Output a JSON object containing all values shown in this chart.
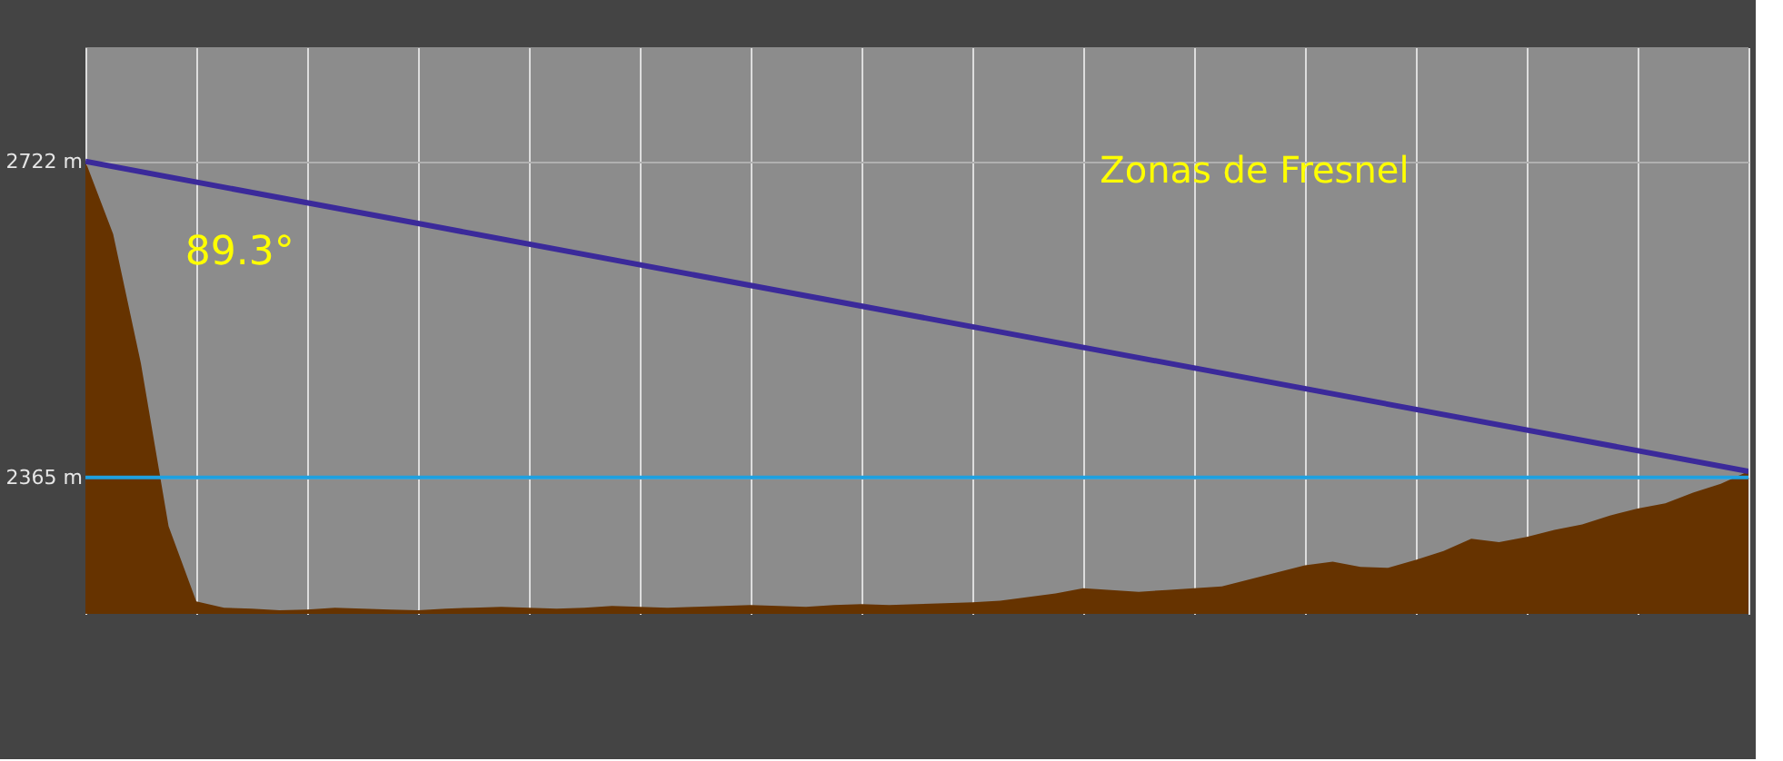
{
  "chart_data": {
    "type": "area",
    "categories": [
      null,
      null,
      null,
      null,
      null,
      null,
      null,
      null,
      null,
      null,
      null,
      null,
      null,
      null,
      null,
      null,
      null,
      null,
      null,
      null,
      null,
      null,
      null,
      null,
      null,
      null,
      null,
      null,
      null,
      null,
      null,
      null,
      null,
      null,
      null,
      null,
      null,
      null,
      null,
      null,
      null,
      null,
      null,
      null,
      null,
      null,
      null,
      null,
      null,
      null,
      null,
      null,
      null,
      null,
      null,
      null,
      null,
      null,
      null,
      null,
      null
    ],
    "series": [
      {
        "color": "#663300",
        "values": [
          2722,
          2640,
          2494,
          2310,
          2225,
          2218,
          2217,
          2215,
          2216,
          2218,
          2217,
          2216,
          2215,
          2217,
          2218,
          2219,
          2218,
          2217,
          2218,
          2220,
          2219,
          2218,
          2219,
          2220,
          2221,
          2220,
          2219,
          2221,
          2222,
          2221,
          2222,
          2223,
          2224,
          2226,
          2230,
          2234,
          2240,
          2238,
          2236,
          2238,
          2240,
          2242,
          2250,
          2258,
          2266,
          2270,
          2264,
          2263,
          2272,
          2282,
          2296,
          2292,
          2298,
          2306,
          2312,
          2322,
          2330,
          2336,
          2348,
          2358,
          2372
        ]
      },
      {
        "type": "line",
        "color": "#3b2a9a",
        "values": [
          2722,
          null,
          null,
          null,
          null,
          null,
          null,
          null,
          null,
          null,
          null,
          null,
          null,
          null,
          null,
          null,
          null,
          null,
          null,
          null,
          null,
          null,
          null,
          null,
          null,
          null,
          null,
          null,
          null,
          null,
          null,
          null,
          null,
          null,
          null,
          null,
          null,
          null,
          null,
          null,
          null,
          null,
          null,
          null,
          null,
          null,
          null,
          null,
          null,
          null,
          null,
          null,
          null,
          null,
          null,
          null,
          null,
          null,
          null,
          null,
          2372
        ]
      }
    ],
    "ylim": [
      2211,
      2851
    ],
    "yticks": [
      {
        "value": 2722,
        "label": "2722 m"
      },
      {
        "value": 2365,
        "label": "2365 m"
      }
    ],
    "tick_labels": "y",
    "grid": true,
    "ref_lines": [
      {
        "axis": "y",
        "value": 2365,
        "color": "#1ea0e0"
      }
    ],
    "annotations": [
      "89.3°",
      "Zonas de Fresnel"
    ]
  }
}
